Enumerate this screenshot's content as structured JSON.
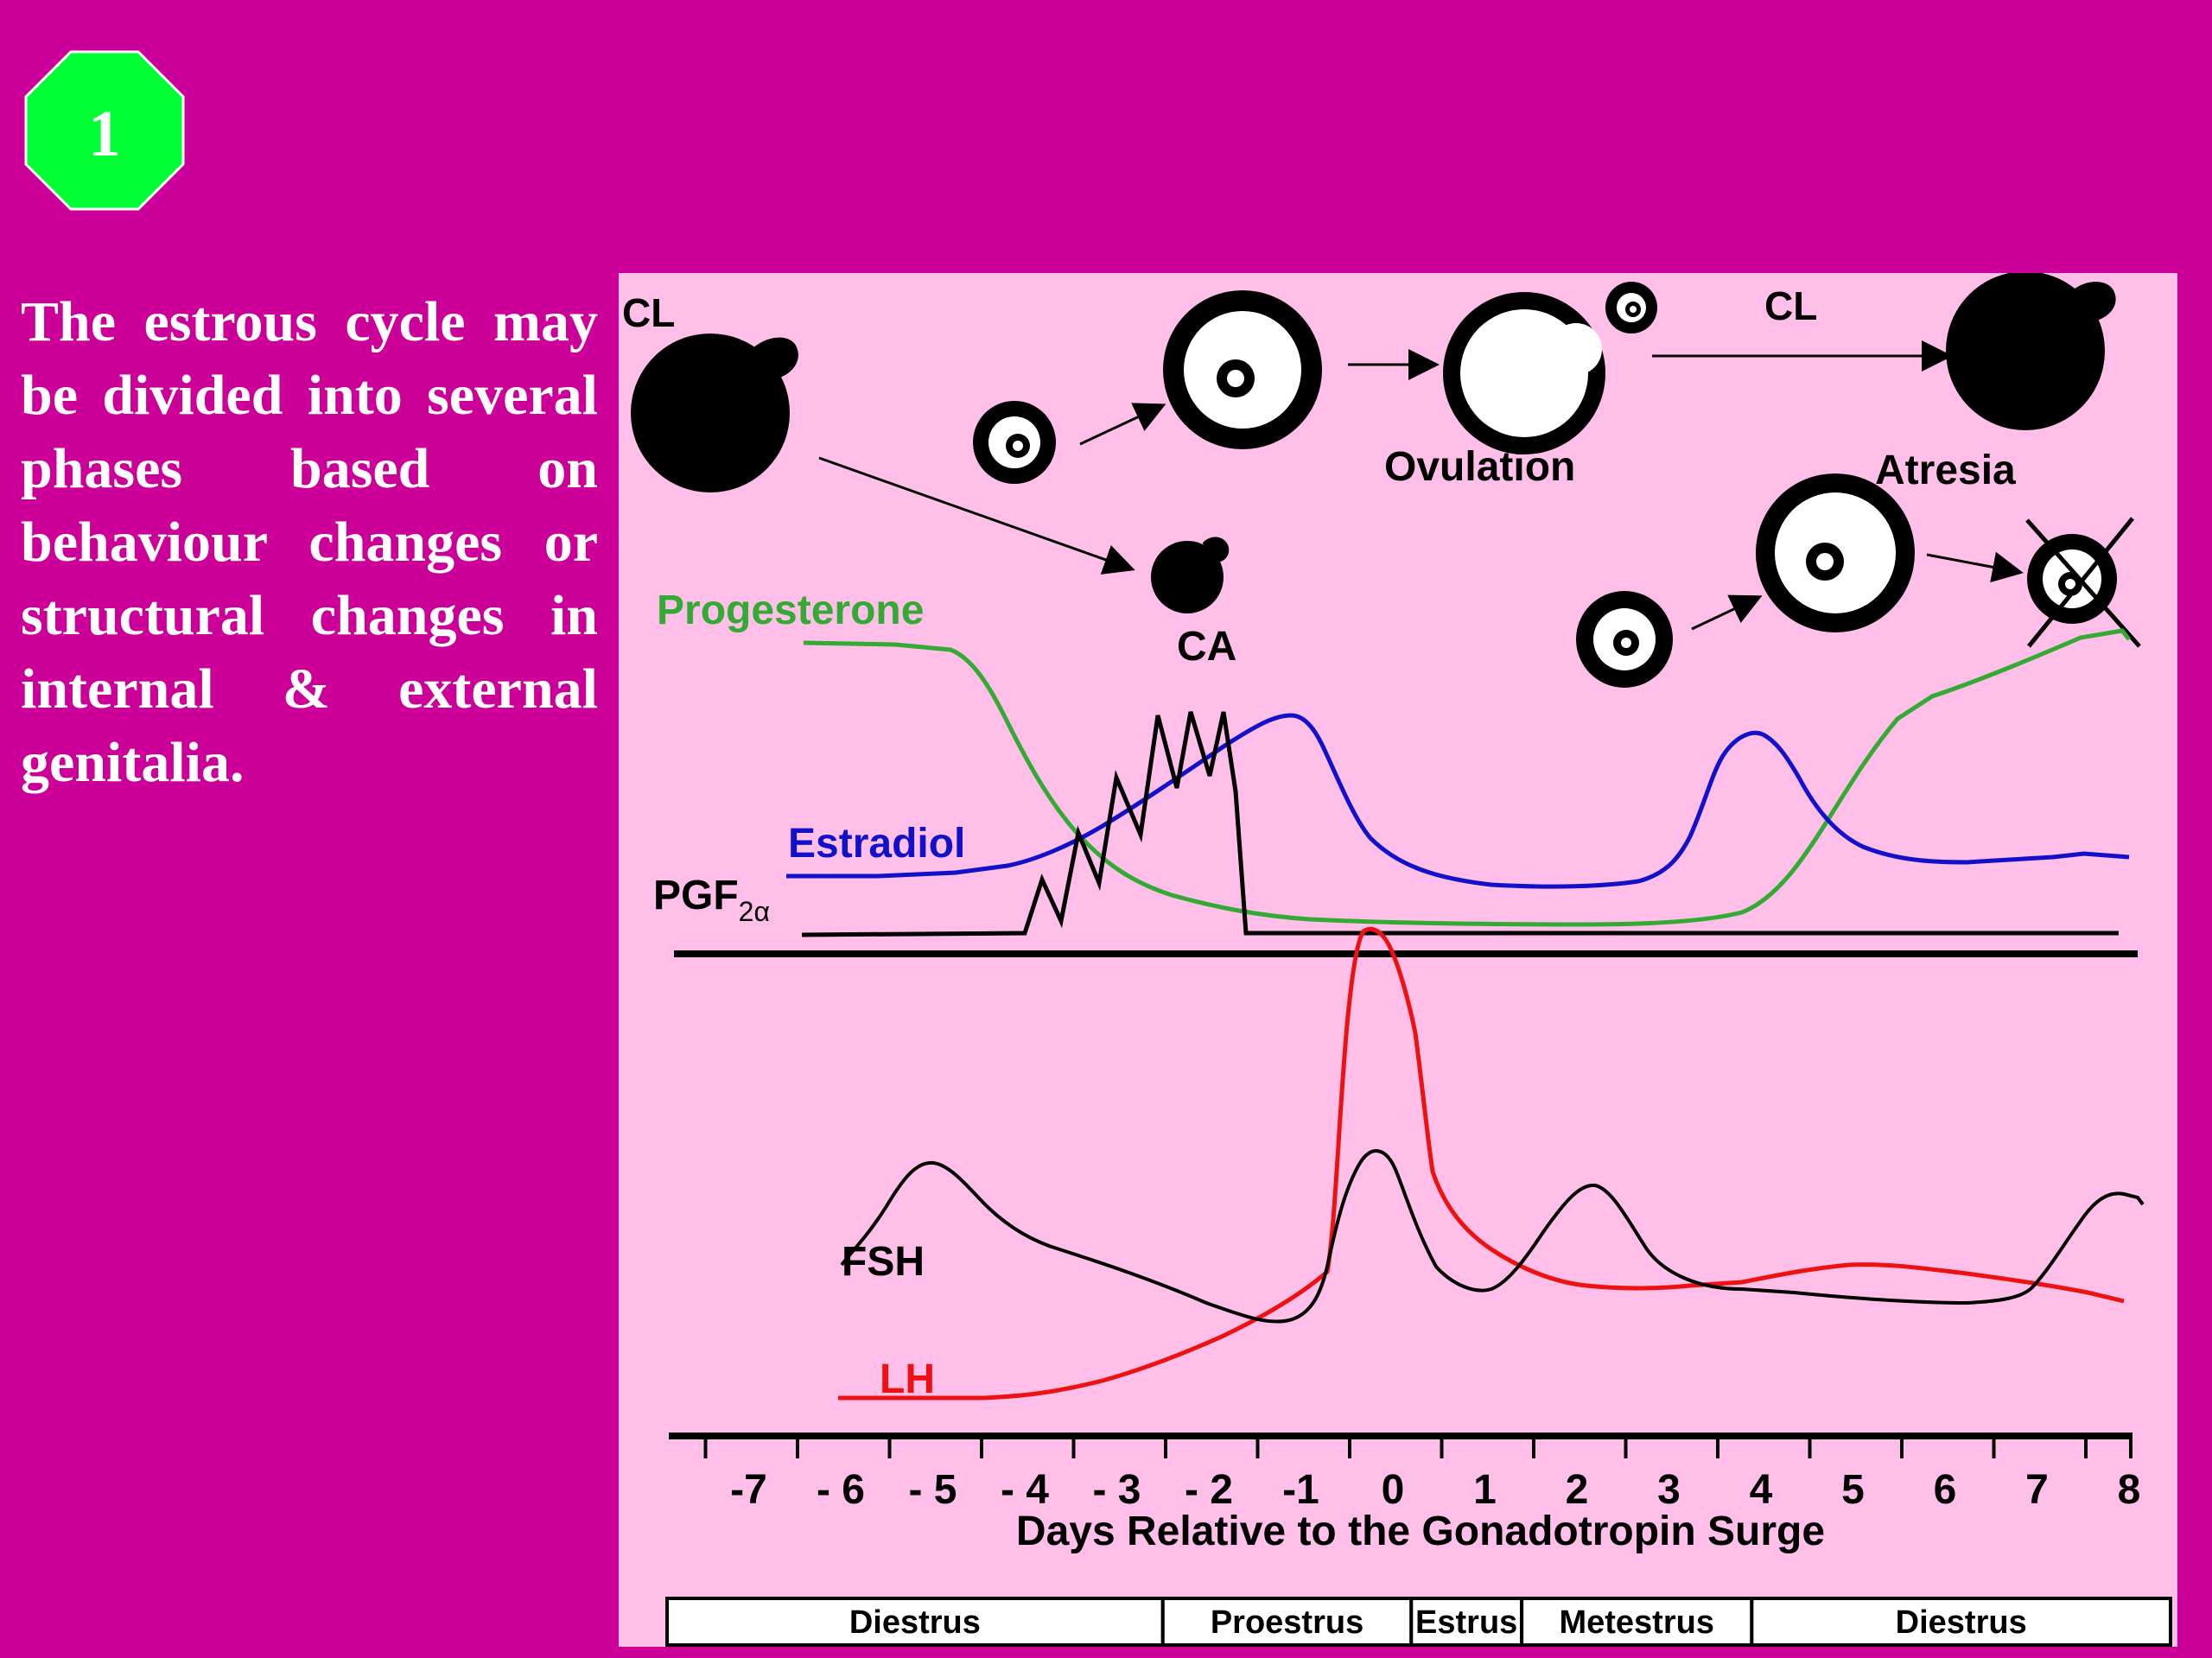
{
  "badge": {
    "number": "1",
    "fill": "#00FF33"
  },
  "intro": {
    "text": "The estrous cycle may be divided into several phases based on behaviour changes or structural changes in internal & external genitalia."
  },
  "figure": {
    "labels": {
      "cl_left": "CL",
      "cl_right": "CL",
      "ovulation": "Ovulation",
      "atresia": "Atresia",
      "ca": "CA",
      "progesterone": "Progesterone",
      "estradiol": "Estradiol",
      "pgf_main": "PGF",
      "pgf_sub": "2α",
      "fsh": "FSH",
      "lh": "LH"
    },
    "colors": {
      "progesterone": "#33AA33",
      "estradiol": "#1111CC",
      "pgf": "#000000",
      "fsh": "#000000",
      "lh": "#EE1111"
    },
    "x_axis": {
      "ticks": [
        "-7",
        "- 6",
        "- 5",
        "- 4",
        "- 3",
        "- 2",
        "-1",
        "0",
        "1",
        "2",
        "3",
        "4",
        "5",
        "6",
        "7",
        "8"
      ],
      "title": "Days Relative to the Gonadotropin Surge"
    },
    "phases": [
      {
        "name": "Diestrus",
        "start": -7.9,
        "end": -2.5
      },
      {
        "name": "Proestrus",
        "start": -2.5,
        "end": 0.2
      },
      {
        "name": "Estrus",
        "start": 0.2,
        "end": 1.4
      },
      {
        "name": "Metestrus",
        "start": 1.4,
        "end": 3.9
      },
      {
        "name": "Diestrus",
        "start": 3.9,
        "end": 8.8
      }
    ],
    "icons": [
      "corpus-luteum-icon",
      "follicle-icon",
      "ovulating-follicle-icon",
      "corpus-albicans-icon",
      "atretic-follicle-icon"
    ]
  }
}
